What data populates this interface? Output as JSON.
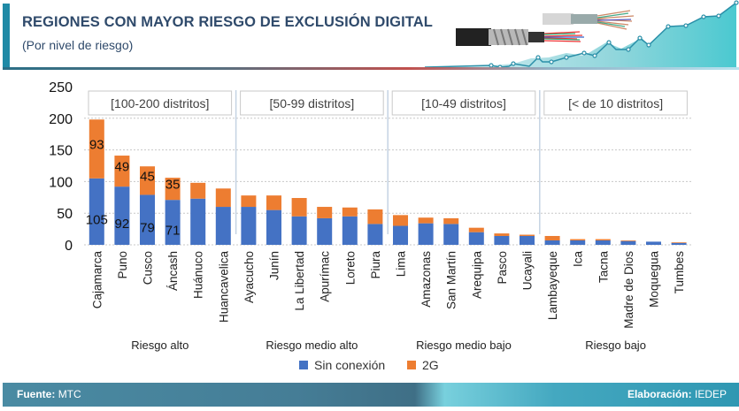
{
  "header": {
    "title": "REGIONES CON MAYOR RIESGO DE EXCLUSIÓN DIGITAL",
    "subtitle": "(Por nivel de riesgo)"
  },
  "footer": {
    "source_label": "Fuente:",
    "source_value": "MTC",
    "credit_label": "Elaboración:",
    "credit_value": "IEDEP"
  },
  "colors": {
    "sin_conexion": "#4472c4",
    "g2": "#ed7d31",
    "accent": "#1f8aa6",
    "title": "#2f4a6b"
  },
  "chart_data": {
    "type": "bar",
    "stacked": true,
    "title": "REGIONES CON MAYOR RIESGO DE EXCLUSIÓN DIGITAL",
    "subtitle": "(Por nivel de riesgo)",
    "xlabel": "",
    "ylabel": "",
    "ylim": [
      0,
      250
    ],
    "yticks": [
      0,
      50,
      100,
      150,
      200,
      250
    ],
    "grid": true,
    "legend_position": "bottom",
    "categories": [
      "Cajamarca",
      "Puno",
      "Cusco",
      "Áncash",
      "Huánuco",
      "Huancavelica",
      "Ayacucho",
      "Junín",
      "La Libertad",
      "Apurímac",
      "Loreto",
      "Piura",
      "Lima",
      "Amazonas",
      "San Martín",
      "Arequipa",
      "Pasco",
      "Ucayali",
      "Lambayeque",
      "Ica",
      "Tacna",
      "Madre de Dios",
      "Moquegua",
      "Tumbes"
    ],
    "series": [
      {
        "name": "Sin conexión",
        "color": "#4472c4",
        "values": [
          105,
          92,
          79,
          71,
          73,
          60,
          60,
          55,
          45,
          42,
          45,
          33,
          30,
          34,
          33,
          20,
          14,
          14,
          7,
          7,
          7,
          6,
          5,
          3
        ]
      },
      {
        "name": "2G",
        "color": "#ed7d31",
        "values": [
          93,
          49,
          45,
          35,
          25,
          29,
          18,
          23,
          29,
          18,
          14,
          23,
          17,
          9,
          9,
          7,
          4,
          2,
          7,
          2,
          2,
          1,
          0,
          1
        ]
      }
    ],
    "data_labels": {
      "Sin conexión": {
        "Cajamarca": "105",
        "Puno": "92",
        "Cusco": "79",
        "Áncash": "71"
      },
      "2G": {
        "Cajamarca": "93",
        "Puno": "49",
        "Cusco": "45",
        "Áncash": "35"
      }
    },
    "sections": [
      {
        "label": "[100-200 distritos]",
        "group": "Riesgo alto",
        "count": 6
      },
      {
        "label": "[50-99 distritos]",
        "group": "Riesgo medio alto",
        "count": 6
      },
      {
        "label": "[10-49 distritos]",
        "group": "Riesgo medio bajo",
        "count": 6
      },
      {
        "label": "[< de 10 distritos]",
        "group": "Riesgo bajo",
        "count": 6
      }
    ]
  }
}
